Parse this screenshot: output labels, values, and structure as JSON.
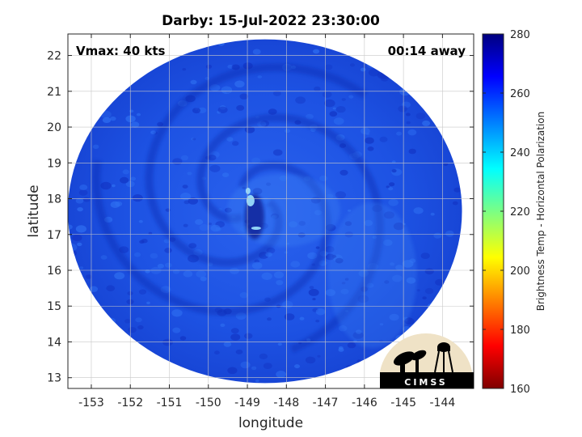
{
  "title": "Darby: 15-Jul-2022 23:30:00",
  "vmax_label": "Vmax: 40 kts",
  "time_label": "00:14 away",
  "chart_data": {
    "type": "heatmap",
    "xlabel": "longitude",
    "ylabel": "latitude",
    "xlim": [
      -153.6,
      -143.2
    ],
    "ylim": [
      12.7,
      22.6
    ],
    "xticks": [
      -153,
      -152,
      -151,
      -150,
      -149,
      -148,
      -147,
      -146,
      -145,
      -144
    ],
    "xtick_labels": [
      "-153",
      "-152",
      "-151",
      "-150",
      "-149",
      "-148",
      "-147",
      "-146",
      "-145",
      "-144"
    ],
    "yticks": [
      13,
      14,
      15,
      16,
      17,
      18,
      19,
      20,
      21,
      22
    ],
    "ytick_labels": [
      "13",
      "14",
      "15",
      "16",
      "17",
      "18",
      "19",
      "20",
      "21",
      "22"
    ],
    "grid": true,
    "swath": {
      "center_lon": -148.55,
      "center_lat": 17.65,
      "radius_lon": 5.05,
      "radius_lat": 4.8
    },
    "storm_center": {
      "lon": -148.9,
      "lat": 17.9
    },
    "colorbar": {
      "label": "Brightness Temp - Horizontal Polarization",
      "range": [
        160,
        280
      ],
      "ticks": [
        160,
        180,
        200,
        220,
        240,
        260,
        280
      ],
      "tick_labels": [
        "160",
        "180",
        "200",
        "220",
        "240",
        "260",
        "280"
      ],
      "colormap": [
        "#7f0000",
        "#ff0000",
        "#ffff00",
        "#00ffff",
        "#0080ff",
        "#0000ff",
        "#00007f"
      ]
    },
    "typical_values": {
      "background": 262,
      "eye_region": 235
    }
  },
  "logo": {
    "text": "CIMSS"
  },
  "colors": {
    "background_blue": "#1b4fe0",
    "dark_band": "#1030b8"
  }
}
